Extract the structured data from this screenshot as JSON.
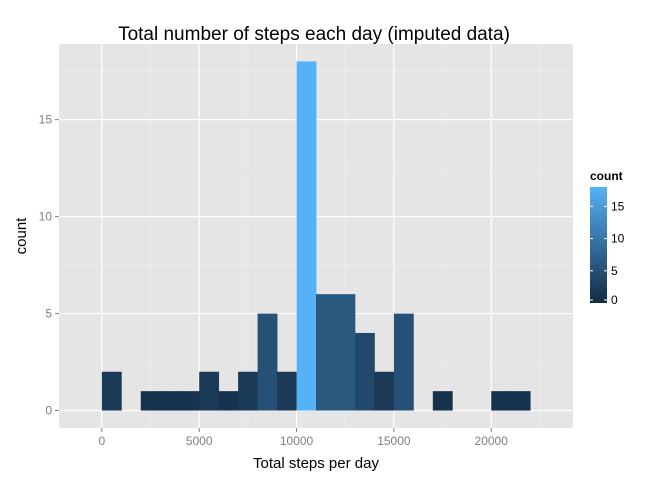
{
  "chart_data": {
    "type": "bar",
    "title": "Total number of steps each day (imputed data)",
    "xlabel": "Total steps per day",
    "ylabel": "count",
    "xlim": [
      -2200,
      24200
    ],
    "ylim": [
      -0.9,
      18.9
    ],
    "binwidth": 1000,
    "x_ticks": [
      0,
      5000,
      10000,
      15000,
      20000
    ],
    "y_ticks": [
      0,
      5,
      10,
      15
    ],
    "bins": [
      {
        "x": 0,
        "count": 2
      },
      {
        "x": 1000,
        "count": 0
      },
      {
        "x": 2000,
        "count": 1
      },
      {
        "x": 3000,
        "count": 1
      },
      {
        "x": 4000,
        "count": 1
      },
      {
        "x": 5000,
        "count": 2
      },
      {
        "x": 6000,
        "count": 1
      },
      {
        "x": 7000,
        "count": 2
      },
      {
        "x": 8000,
        "count": 5
      },
      {
        "x": 9000,
        "count": 2
      },
      {
        "x": 10000,
        "count": 18
      },
      {
        "x": 11000,
        "count": 6
      },
      {
        "x": 12000,
        "count": 6
      },
      {
        "x": 13000,
        "count": 4
      },
      {
        "x": 14000,
        "count": 2
      },
      {
        "x": 15000,
        "count": 5
      },
      {
        "x": 16000,
        "count": 0
      },
      {
        "x": 17000,
        "count": 1
      },
      {
        "x": 18000,
        "count": 0
      },
      {
        "x": 19000,
        "count": 0
      },
      {
        "x": 20000,
        "count": 1
      },
      {
        "x": 21000,
        "count": 1
      }
    ],
    "legend": {
      "title": "count",
      "position": "right",
      "ticks": [
        0,
        5,
        10,
        15
      ],
      "color_low": "#132b43",
      "color_high": "#56b1f7",
      "range": [
        0,
        18
      ]
    },
    "panel_background": "#e5e5e5",
    "grid": true
  }
}
